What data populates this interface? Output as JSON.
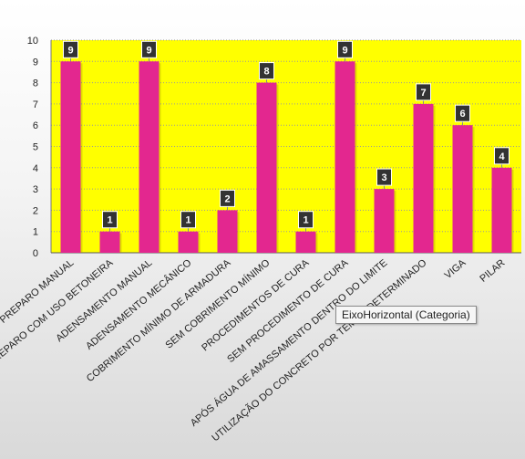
{
  "chart_data": {
    "type": "bar",
    "categories": [
      "PREPARO MANUAL",
      "PREPARO COM USO BETONEIRA",
      "ADENSAMENTO MANUAL",
      "ADENSAMENTO MECÂNICO",
      "COBRIMENTO MÍNIMO DE ARMADURA",
      "SEM COBRIMENTO MÍNIMO",
      "PROCEDIMENTOS DE CURA",
      "SEM PROCEDIMENTO DE CURA",
      "APÓS ÁGUA DE AMASSAMENTO DENTRO DO LIMITE",
      "UTILIZAÇÃO DO CONCRETO POR TEMPO DETERMINADO",
      "VIGA",
      "PILAR"
    ],
    "values": [
      9,
      1,
      9,
      1,
      2,
      8,
      1,
      9,
      3,
      7,
      6,
      4
    ],
    "ylim": [
      0,
      10
    ],
    "yticks": [
      "0",
      "1",
      "2",
      "3",
      "4",
      "5",
      "6",
      "7",
      "8",
      "9",
      "10"
    ],
    "grid": true,
    "title": "",
    "xlabel": "",
    "ylabel": "",
    "colors": {
      "bar": "#e3278f",
      "plot_bg": "#ffff00",
      "grid": "#9a9a9a",
      "label_bg": "#333333",
      "label_text": "#ffffff"
    }
  },
  "tooltip": {
    "text": "EixoHorizontal (Categoria)"
  }
}
